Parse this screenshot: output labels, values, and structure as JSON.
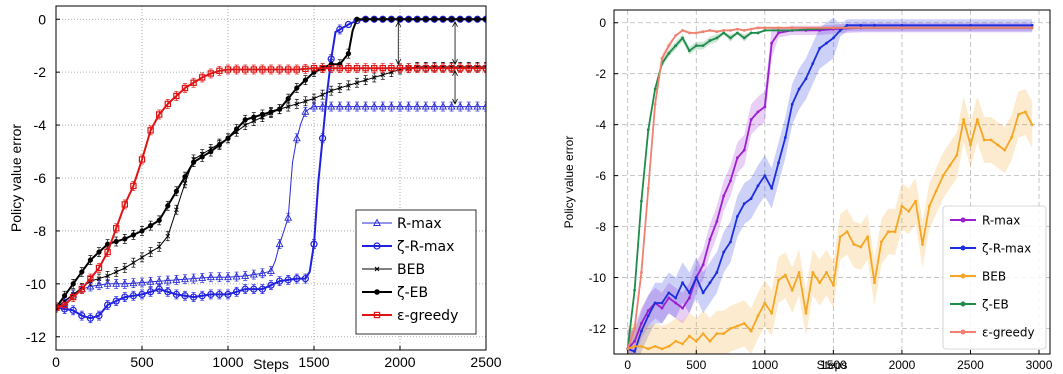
{
  "chart_data": [
    {
      "type": "line",
      "xlabel": "Steps",
      "ylabel": "Policy value error",
      "xlim": [
        0,
        2500
      ],
      "ylim": [
        -12.5,
        0.5
      ],
      "xticks": [
        0,
        500,
        1000,
        1500,
        2000,
        2500
      ],
      "yticks": [
        0,
        -2,
        -4,
        -6,
        -8,
        -10,
        -12
      ],
      "grid": true,
      "legend_position": "lower-right",
      "series": [
        {
          "name": "R-max",
          "color": "#2a2ad8",
          "marker": "triangle",
          "x": [
            0,
            50,
            100,
            150,
            200,
            300,
            400,
            500,
            600,
            700,
            800,
            900,
            1000,
            1100,
            1200,
            1260,
            1300,
            1350,
            1380,
            1420,
            1450,
            1480,
            1500,
            1550,
            1600,
            1700,
            2000,
            2500
          ],
          "y": [
            -10.9,
            -10.7,
            -10.4,
            -10.2,
            -10.1,
            -10.0,
            -10.0,
            -9.95,
            -9.9,
            -9.85,
            -9.8,
            -9.75,
            -9.75,
            -9.7,
            -9.6,
            -9.5,
            -8.5,
            -7.5,
            -5.0,
            -4.0,
            -3.5,
            -3.35,
            -3.3,
            -3.3,
            -3.3,
            -3.3,
            -3.3,
            -3.3
          ]
        },
        {
          "name": "ζ-R-max",
          "color": "#2020e0",
          "marker": "circle",
          "x": [
            0,
            100,
            150,
            200,
            250,
            300,
            400,
            500,
            600,
            700,
            800,
            900,
            1000,
            1100,
            1200,
            1300,
            1400,
            1450,
            1480,
            1500,
            1520,
            1550,
            1580,
            1620,
            1700,
            1750,
            1800,
            2000,
            2500
          ],
          "y": [
            -10.9,
            -11.0,
            -11.2,
            -11.3,
            -11.2,
            -10.8,
            -10.5,
            -10.4,
            -10.2,
            -10.4,
            -10.5,
            -10.4,
            -10.4,
            -10.2,
            -10.2,
            -9.9,
            -9.8,
            -9.8,
            -9.5,
            -8.5,
            -6.5,
            -4.5,
            -2.5,
            -0.5,
            -0.2,
            -0.05,
            0,
            0,
            0
          ]
        },
        {
          "name": "BEB",
          "color": "#000000",
          "marker": "x",
          "x": [
            0,
            100,
            200,
            300,
            400,
            500,
            600,
            650,
            700,
            750,
            800,
            900,
            1000,
            1100,
            1200,
            1300,
            1400,
            1500,
            1600,
            1700,
            1800,
            1900,
            2000,
            2100,
            2200,
            2300,
            2400,
            2500
          ],
          "y": [
            -10.9,
            -10.4,
            -9.9,
            -9.7,
            -9.4,
            -9.0,
            -8.6,
            -8.2,
            -7.2,
            -6.2,
            -5.3,
            -4.9,
            -4.5,
            -4.0,
            -3.7,
            -3.4,
            -3.2,
            -3.0,
            -2.7,
            -2.5,
            -2.3,
            -2.1,
            -1.9,
            -1.8,
            -1.8,
            -1.8,
            -1.8,
            -1.8
          ]
        },
        {
          "name": "ζ-EB",
          "color": "#000000",
          "marker": "star",
          "x": [
            0,
            100,
            200,
            300,
            400,
            500,
            600,
            700,
            800,
            900,
            1000,
            1100,
            1200,
            1300,
            1400,
            1500,
            1600,
            1650,
            1700,
            1720,
            1750,
            1800,
            2000,
            2500
          ],
          "y": [
            -10.9,
            -10.0,
            -9.1,
            -8.5,
            -8.3,
            -8.0,
            -7.6,
            -6.5,
            -5.4,
            -5.0,
            -4.5,
            -3.8,
            -3.6,
            -3.4,
            -2.6,
            -2.0,
            -1.7,
            -1.7,
            -1.3,
            -0.5,
            0,
            0,
            0,
            0
          ]
        },
        {
          "name": "ε-greedy",
          "color": "#e01414",
          "marker": "square",
          "x": [
            0,
            50,
            100,
            150,
            200,
            250,
            300,
            350,
            400,
            450,
            500,
            550,
            600,
            650,
            700,
            750,
            800,
            850,
            900,
            950,
            1000,
            1100,
            1200,
            1300,
            1400,
            1500,
            1600,
            1700,
            1800,
            2000,
            2500
          ],
          "y": [
            -10.9,
            -10.8,
            -10.5,
            -10.2,
            -9.8,
            -9.4,
            -8.8,
            -7.9,
            -7.0,
            -6.3,
            -5.3,
            -4.2,
            -3.6,
            -3.2,
            -2.9,
            -2.6,
            -2.4,
            -2.2,
            -2.05,
            -1.95,
            -1.9,
            -1.9,
            -1.9,
            -1.9,
            -1.9,
            -1.85,
            -1.85,
            -1.85,
            -1.85,
            -1.85,
            -1.85
          ]
        }
      ]
    },
    {
      "type": "line",
      "xlabel": "Steps",
      "ylabel": "Policy value error",
      "xlim": [
        -100,
        3080
      ],
      "ylim": [
        -13.0,
        0.5
      ],
      "xticks": [
        0,
        500,
        1000,
        1500,
        2000,
        2500,
        3000
      ],
      "yticks": [
        0,
        -2,
        -4,
        -6,
        -8,
        -10,
        -12
      ],
      "grid": true,
      "legend_position": "lower-right",
      "series": [
        {
          "name": "R-max",
          "color": "#9b1fd0",
          "x": [
            0,
            50,
            100,
            150,
            200,
            250,
            300,
            350,
            400,
            450,
            500,
            550,
            600,
            650,
            700,
            750,
            800,
            850,
            900,
            950,
            1000,
            1050,
            1100,
            1200,
            1300,
            1400,
            1500,
            1700,
            2000,
            2500,
            2950
          ],
          "y": [
            -12.8,
            -12.5,
            -11.8,
            -11.3,
            -11.0,
            -11.2,
            -10.8,
            -11.0,
            -11.2,
            -10.8,
            -10.0,
            -9.5,
            -8.5,
            -7.8,
            -6.8,
            -6.2,
            -5.3,
            -5.0,
            -3.8,
            -3.5,
            -3.3,
            -0.8,
            -0.4,
            -0.3,
            -0.3,
            -0.3,
            -0.25,
            -0.2,
            -0.2,
            -0.2,
            -0.2
          ]
        },
        {
          "name": "ζ-R-max",
          "color": "#1c2fe0",
          "x": [
            0,
            50,
            100,
            150,
            200,
            250,
            300,
            350,
            400,
            450,
            500,
            550,
            600,
            650,
            700,
            750,
            800,
            850,
            900,
            950,
            1000,
            1050,
            1100,
            1150,
            1200,
            1250,
            1300,
            1350,
            1400,
            1450,
            1500,
            1550,
            1600,
            1700,
            1800,
            2000,
            2500,
            2950
          ],
          "y": [
            -12.8,
            -12.9,
            -12.1,
            -11.5,
            -11.0,
            -11.0,
            -10.6,
            -10.8,
            -10.2,
            -10.6,
            -10.0,
            -10.6,
            -10.2,
            -9.8,
            -9.0,
            -8.6,
            -7.6,
            -7.1,
            -6.9,
            -6.4,
            -6.0,
            -6.5,
            -5.5,
            -4.5,
            -3.2,
            -2.6,
            -2.2,
            -1.6,
            -1.0,
            -0.8,
            -0.6,
            -0.3,
            -0.1,
            -0.1,
            -0.1,
            -0.1,
            -0.1,
            -0.1
          ]
        },
        {
          "name": "BEB",
          "color": "#f5a623",
          "x": [
            0,
            50,
            100,
            150,
            200,
            250,
            300,
            350,
            400,
            450,
            500,
            550,
            600,
            650,
            700,
            750,
            800,
            850,
            900,
            950,
            1000,
            1050,
            1100,
            1150,
            1200,
            1250,
            1300,
            1350,
            1400,
            1450,
            1500,
            1550,
            1600,
            1650,
            1700,
            1750,
            1800,
            1850,
            1900,
            1950,
            2000,
            2050,
            2100,
            2150,
            2200,
            2250,
            2300,
            2350,
            2400,
            2450,
            2500,
            2550,
            2600,
            2650,
            2700,
            2750,
            2800,
            2850,
            2900,
            2950
          ],
          "y": [
            -12.8,
            -12.7,
            -12.7,
            -12.8,
            -12.7,
            -12.8,
            -12.7,
            -12.5,
            -12.6,
            -12.3,
            -12.5,
            -12.2,
            -12.5,
            -12.2,
            -12.2,
            -12.0,
            -11.9,
            -11.8,
            -12.1,
            -11.5,
            -11.0,
            -11.4,
            -10.1,
            -9.9,
            -10.5,
            -9.8,
            -11.4,
            -9.8,
            -10.2,
            -9.8,
            -10.3,
            -8.4,
            -8.2,
            -8.7,
            -8.8,
            -8.4,
            -10.2,
            -8.6,
            -8.2,
            -8.2,
            -7.2,
            -7.4,
            -7.0,
            -8.7,
            -7.2,
            -6.6,
            -6.0,
            -5.6,
            -5.2,
            -3.8,
            -4.8,
            -3.8,
            -4.6,
            -4.6,
            -4.8,
            -5.0,
            -4.5,
            -3.6,
            -3.5,
            -4.0
          ]
        },
        {
          "name": "ζ-EB",
          "color": "#1e8c4a",
          "x": [
            0,
            50,
            100,
            150,
            200,
            250,
            300,
            350,
            400,
            450,
            500,
            550,
            600,
            650,
            700,
            750,
            800,
            850,
            900,
            950,
            1000,
            1100,
            1200,
            1500,
            2000,
            2500,
            2950
          ],
          "y": [
            -12.8,
            -10.5,
            -7.0,
            -4.2,
            -2.6,
            -1.6,
            -1.2,
            -0.9,
            -0.6,
            -1.1,
            -0.9,
            -0.9,
            -0.7,
            -0.6,
            -0.4,
            -0.6,
            -0.4,
            -0.6,
            -0.4,
            -0.4,
            -0.3,
            -0.3,
            -0.3,
            -0.2,
            -0.2,
            -0.2,
            -0.2
          ]
        },
        {
          "name": "ε-greedy",
          "color": "#f08070",
          "x": [
            0,
            50,
            100,
            150,
            200,
            250,
            300,
            350,
            400,
            450,
            500,
            550,
            600,
            650,
            700,
            750,
            800,
            850,
            900,
            950,
            1000,
            1100,
            1200,
            1500,
            2000,
            2500,
            2950
          ],
          "y": [
            -12.8,
            -12.0,
            -9.8,
            -6.5,
            -3.2,
            -1.4,
            -0.9,
            -0.5,
            -0.3,
            -0.4,
            -0.4,
            -0.35,
            -0.3,
            -0.35,
            -0.3,
            -0.3,
            -0.25,
            -0.3,
            -0.25,
            -0.2,
            -0.2,
            -0.2,
            -0.2,
            -0.2,
            -0.2,
            -0.2,
            -0.2
          ]
        }
      ]
    }
  ]
}
